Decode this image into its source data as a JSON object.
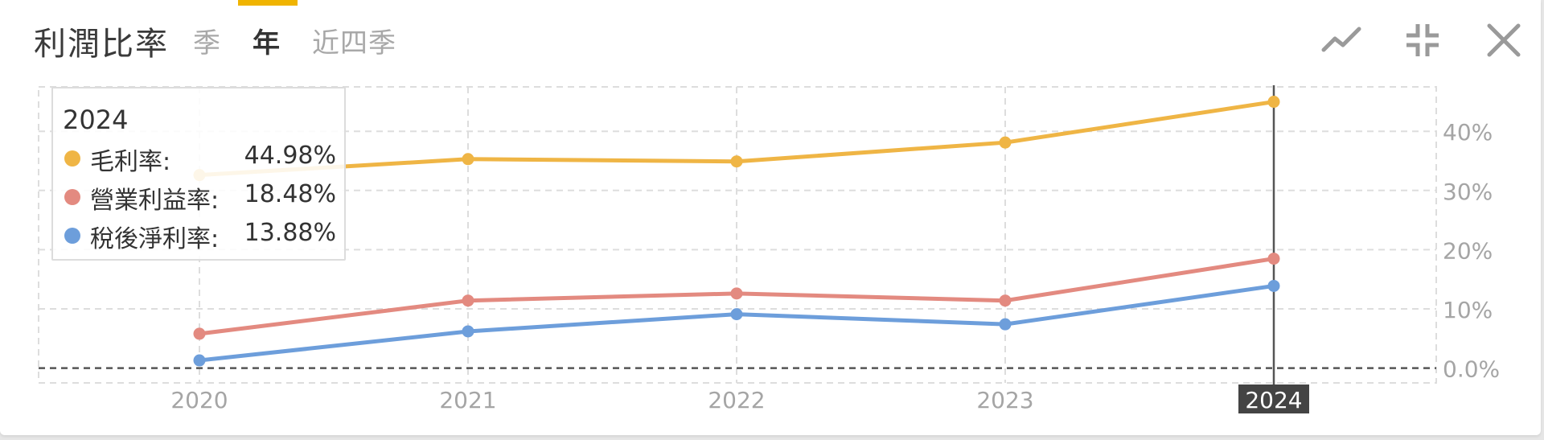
{
  "header": {
    "title": "利潤比率",
    "tabs": [
      {
        "label": "季",
        "active": false
      },
      {
        "label": "年",
        "active": true
      },
      {
        "label": "近四季",
        "active": false
      }
    ],
    "icons": [
      "line-chart-icon",
      "collapse-icon",
      "close-icon"
    ]
  },
  "colors": {
    "gross": "#efb545",
    "operating": "#e38a80",
    "net": "#6d9edb",
    "accent": "#f0b400"
  },
  "tooltip": {
    "year": "2024",
    "rows": [
      {
        "label": "毛利率:",
        "value": "44.98%"
      },
      {
        "label": "營業利益率:",
        "value": "18.48%"
      },
      {
        "label": "稅後淨利率:",
        "value": "13.88%"
      }
    ]
  },
  "chart_data": {
    "type": "line",
    "categories": [
      "2020",
      "2021",
      "2022",
      "2023",
      "2024"
    ],
    "series": [
      {
        "name": "毛利率",
        "values": [
          32.6,
          35.3,
          34.9,
          38.1,
          44.98
        ]
      },
      {
        "name": "營業利益率",
        "values": [
          5.8,
          11.4,
          12.6,
          11.4,
          18.48
        ]
      },
      {
        "name": "稅後淨利率",
        "values": [
          1.3,
          6.2,
          9.1,
          7.4,
          13.88
        ]
      }
    ],
    "y_ticks": [
      "0.0%",
      "10%",
      "20%",
      "30%",
      "40%"
    ],
    "ylim": [
      -2.5,
      47.5
    ],
    "y_axis_position": "right",
    "grid": true,
    "highlighted_category": "2024"
  }
}
